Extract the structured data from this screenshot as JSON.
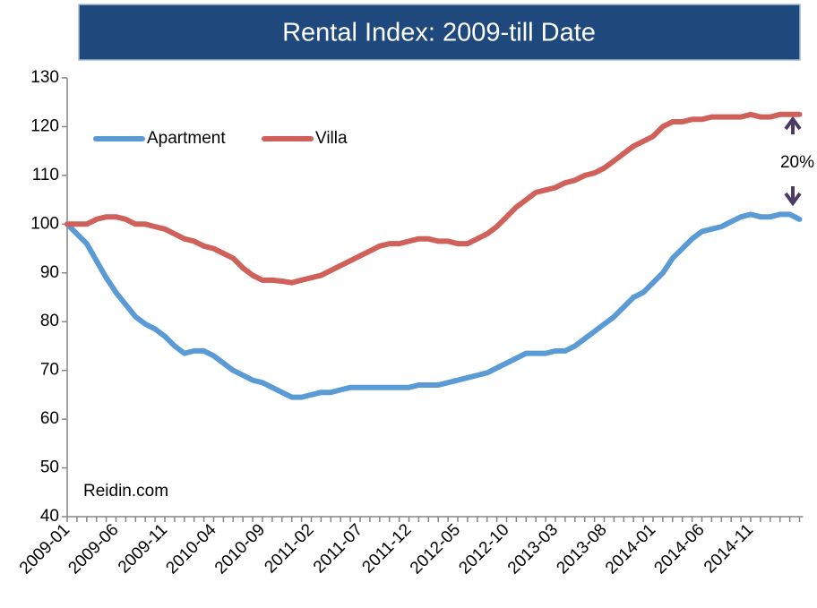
{
  "chart_data": {
    "type": "line",
    "title": "Rental Index: 2009-till Date",
    "annotations": [
      "20%",
      "Reidin.com"
    ],
    "categories": [
      "2009-01",
      null,
      null,
      null,
      null,
      "2009-06",
      null,
      null,
      null,
      null,
      "2009-11",
      null,
      null,
      null,
      null,
      "2010-04",
      null,
      null,
      null,
      null,
      "2010-09",
      null,
      null,
      null,
      null,
      "2011-02",
      null,
      null,
      null,
      null,
      "2011-07",
      null,
      null,
      null,
      null,
      "2011-12",
      null,
      null,
      null,
      null,
      "2012-05",
      null,
      null,
      null,
      null,
      "2012-10",
      null,
      null,
      null,
      null,
      "2013-03",
      null,
      null,
      null,
      null,
      "2013-08",
      null,
      null,
      null,
      null,
      "2014-01",
      null,
      null,
      null,
      null,
      "2014-06",
      null,
      null,
      null,
      null,
      "2014-11",
      null,
      null,
      null,
      null,
      null
    ],
    "series": [
      {
        "name": "Apartment",
        "color": "#5b9bd5",
        "values": [
          100,
          98,
          96,
          92.5,
          89,
          86,
          83.5,
          81,
          79.5,
          78.5,
          77,
          75,
          73.5,
          74,
          74,
          73,
          71.5,
          70,
          69,
          68,
          67.5,
          66.5,
          65.5,
          64.5,
          64.5,
          65,
          65.5,
          65.5,
          66,
          66.5,
          66.5,
          66.5,
          66.5,
          66.5,
          66.5,
          66.5,
          67,
          67,
          67,
          67.5,
          68,
          68.5,
          69,
          69.5,
          70.5,
          71.5,
          72.5,
          73.5,
          73.5,
          73.5,
          74,
          74,
          75,
          76.5,
          78,
          79.5,
          81,
          83,
          85,
          86,
          88,
          90,
          93,
          95,
          97,
          98.5,
          99,
          99.5,
          100.5,
          101.5,
          102,
          101.5,
          101.5,
          102,
          102,
          101
        ]
      },
      {
        "name": "Villa",
        "color": "#d0605a",
        "values": [
          100,
          100,
          100,
          101,
          101.5,
          101.5,
          101,
          100,
          100,
          99.5,
          99,
          98,
          97,
          96.5,
          95.5,
          95,
          94,
          93,
          91,
          89.5,
          88.5,
          88.5,
          88.3,
          88,
          88.5,
          89,
          89.5,
          90.5,
          91.5,
          92.5,
          93.5,
          94.5,
          95.5,
          96,
          96,
          96.5,
          97,
          97,
          96.5,
          96.5,
          96,
          96,
          97,
          98,
          99.5,
          101.5,
          103.5,
          105,
          106.5,
          107,
          107.5,
          108.5,
          109,
          110,
          110.5,
          111.5,
          113,
          114.5,
          116,
          117,
          118,
          120,
          121,
          121,
          121.5,
          121.5,
          122,
          122,
          122,
          122,
          122.5,
          122,
          122,
          122.5,
          122.5,
          122.5
        ]
      }
    ],
    "ylim": [
      40,
      130
    ],
    "yticks": [
      40,
      50,
      60,
      70,
      80,
      90,
      100,
      110,
      120,
      130
    ],
    "grid": false,
    "legend": "upper left"
  }
}
